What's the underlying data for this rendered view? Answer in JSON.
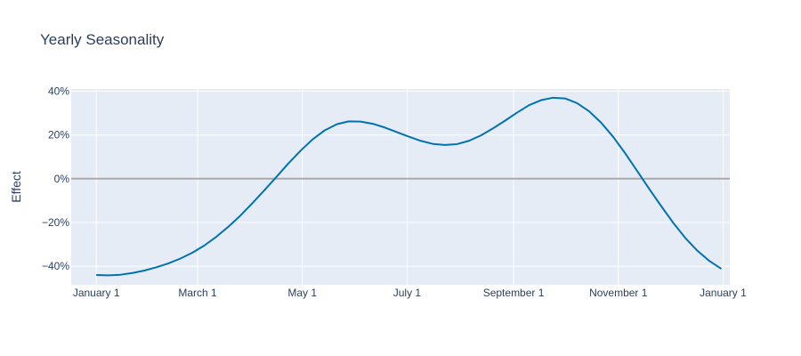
{
  "chart_data": {
    "type": "line",
    "title": "Yearly Seasonality",
    "xlabel": "",
    "ylabel": "Effect",
    "x_ticks": [
      "January  1",
      "March  1",
      "May  1",
      "July  1",
      "September  1",
      "November  1",
      "January  1"
    ],
    "y_ticks": [
      "40%",
      "20%",
      "0%",
      "−20%",
      "−40%"
    ],
    "y_tick_values": [
      40,
      20,
      0,
      -20,
      -40
    ],
    "ylim": [
      -48.5,
      41
    ],
    "xlim_day": [
      -14.6,
      368.9
    ],
    "zero_line": true,
    "grid": true,
    "legend": "none",
    "line_color": "#0072b2",
    "zero_line_color": "#aaaaaa",
    "plot_background": "#e5ecf6",
    "grid_color": "#ffffff",
    "series": [
      {
        "x": [
          "Jan 1",
          "Jan 8",
          "Jan 15",
          "Jan 22",
          "Jan 29",
          "Feb 5",
          "Feb 12",
          "Feb 19",
          "Feb 26",
          "Mar 5",
          "Mar 12",
          "Mar 19",
          "Mar 26",
          "Apr 2",
          "Apr 9",
          "Apr 16",
          "Apr 23",
          "Apr 30",
          "May 7",
          "May 14",
          "May 21",
          "May 28",
          "Jun 4",
          "Jun 11",
          "Jun 18",
          "Jun 25",
          "Jul 2",
          "Jul 9",
          "Jul 16",
          "Jul 23",
          "Jul 30",
          "Aug 6",
          "Aug 13",
          "Aug 20",
          "Aug 27",
          "Sep 3",
          "Sep 10",
          "Sep 17",
          "Sep 24",
          "Oct 1",
          "Oct 8",
          "Oct 15",
          "Oct 22",
          "Oct 29",
          "Nov 5",
          "Nov 12",
          "Nov 19",
          "Nov 26",
          "Dec 3",
          "Dec 10",
          "Dec 17",
          "Dec 24",
          "Dec 31"
        ],
        "day": [
          0,
          7,
          14,
          21,
          28,
          35,
          42,
          49,
          56,
          63,
          70,
          77,
          84,
          91,
          98,
          105,
          112,
          119,
          126,
          133,
          140,
          147,
          154,
          161,
          168,
          175,
          182,
          189,
          196,
          203,
          210,
          217,
          224,
          231,
          238,
          245,
          252,
          259,
          266,
          273,
          280,
          287,
          294,
          301,
          308,
          315,
          322,
          329,
          336,
          343,
          350,
          357,
          364
        ],
        "values": [
          -44,
          -44.2,
          -43.9,
          -43.1,
          -42,
          -40.5,
          -38.7,
          -36.5,
          -33.8,
          -30.5,
          -26.5,
          -21.9,
          -16.8,
          -11.1,
          -5.2,
          0.9,
          7.1,
          12.8,
          18,
          22.1,
          24.9,
          26.2,
          26.1,
          25.1,
          23.4,
          21.3,
          19.2,
          17.3,
          15.9,
          15.4,
          15.8,
          17.3,
          19.8,
          23,
          26.5,
          30.2,
          33.6,
          35.9,
          37,
          36.7,
          34.5,
          30.8,
          25.6,
          19.1,
          11.6,
          3.5,
          -4.7,
          -12.6,
          -20.2,
          -27.1,
          -32.9,
          -37.6,
          -41.2
        ]
      }
    ]
  }
}
